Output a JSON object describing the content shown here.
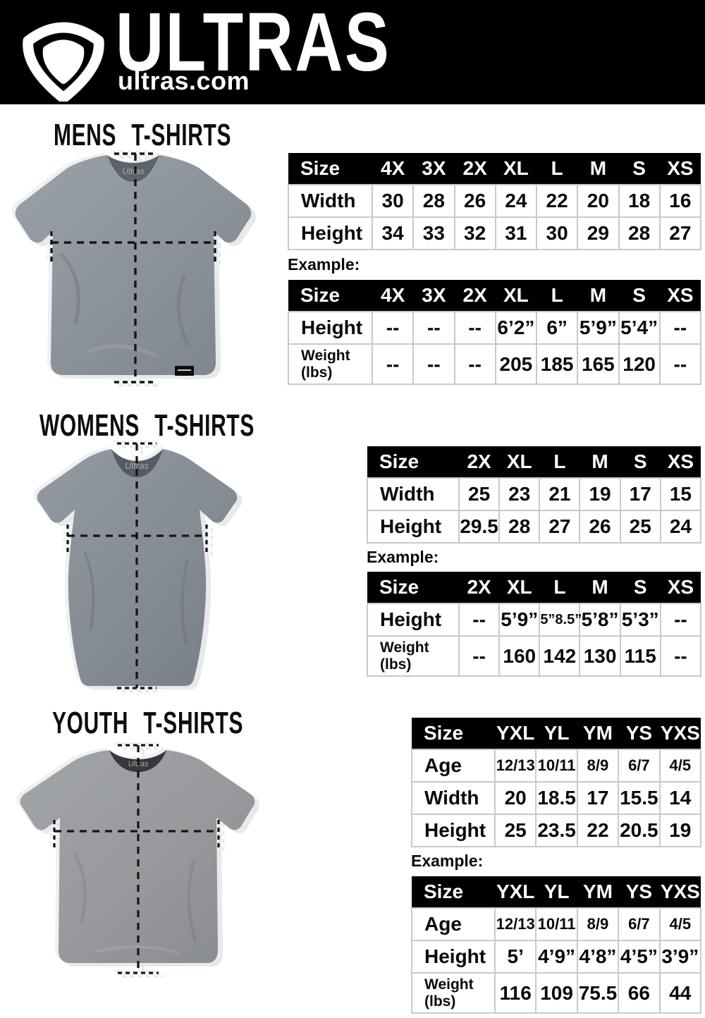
{
  "header": {
    "brand": "ULTRAS",
    "site": "ultras.com",
    "logo_icon": "pentagon-shield-icon"
  },
  "colors": {
    "header_bg": "#000000",
    "table_header_bg": "#000000",
    "table_header_text": "#ffffff",
    "table_border": "#c9c9c9",
    "mens_shirt": "#8d939b",
    "womens_shirt": "#878d95",
    "youth_shirt": "#97999c"
  },
  "sections": [
    {
      "id": "mens",
      "title": "MENS T-SHIRTS",
      "shirt_image": "mens-gray-tshirt-with-measurement-lines",
      "size_table": {
        "header": [
          "Size",
          "4X",
          "3X",
          "2X",
          "XL",
          "L",
          "M",
          "S",
          "XS"
        ],
        "rows": [
          {
            "label_lines": [
              "Width"
            ],
            "values": [
              "30",
              "28",
              "26",
              "24",
              "22",
              "20",
              "18",
              "16"
            ]
          },
          {
            "label_lines": [
              "Height"
            ],
            "values": [
              "34",
              "33",
              "32",
              "31",
              "30",
              "29",
              "28",
              "27"
            ]
          }
        ]
      },
      "example_label": "Example:",
      "example_table": {
        "header": [
          "Size",
          "4X",
          "3X",
          "2X",
          "XL",
          "L",
          "M",
          "S",
          "XS"
        ],
        "rows": [
          {
            "label_lines": [
              "Height"
            ],
            "values": [
              "--",
              "--",
              "--",
              "6’2”",
              "6”",
              "5’9”",
              "5’4”",
              "--"
            ]
          },
          {
            "label_lines": [
              "Weight",
              "(lbs)"
            ],
            "values": [
              "--",
              "--",
              "--",
              "205",
              "185",
              "165",
              "120",
              "--"
            ]
          }
        ]
      }
    },
    {
      "id": "womens",
      "title": "WOMENS T-SHIRTS",
      "shirt_image": "womens-gray-tshirt-with-measurement-lines",
      "size_table": {
        "header": [
          "Size",
          "2X",
          "XL",
          "L",
          "M",
          "S",
          "XS"
        ],
        "rows": [
          {
            "label_lines": [
              "Width"
            ],
            "values": [
              "25",
              "23",
              "21",
              "19",
              "17",
              "15"
            ]
          },
          {
            "label_lines": [
              "Height"
            ],
            "values": [
              "29.5",
              "28",
              "27",
              "26",
              "25",
              "24"
            ]
          }
        ]
      },
      "example_label": "Example:",
      "example_table": {
        "header": [
          "Size",
          "2X",
          "XL",
          "L",
          "M",
          "S",
          "XS"
        ],
        "rows": [
          {
            "label_lines": [
              "Height"
            ],
            "values": [
              "--",
              "5’9”",
              "5”8.5”",
              "5’8”",
              "5’3”",
              "--"
            ]
          },
          {
            "label_lines": [
              "Weight",
              "(lbs)"
            ],
            "values": [
              "--",
              "160",
              "142",
              "130",
              "115",
              "--"
            ]
          }
        ]
      }
    },
    {
      "id": "youth",
      "title": "YOUTH T-SHIRTS",
      "shirt_image": "youth-gray-tshirt-with-measurement-lines",
      "size_table": {
        "header": [
          "Size",
          "YXL",
          "YL",
          "YM",
          "YS",
          "YXS"
        ],
        "rows": [
          {
            "label_lines": [
              "Age"
            ],
            "small": true,
            "values": [
              "12/13",
              "10/11",
              "8/9",
              "6/7",
              "4/5"
            ]
          },
          {
            "label_lines": [
              "Width"
            ],
            "values": [
              "20",
              "18.5",
              "17",
              "15.5",
              "14"
            ]
          },
          {
            "label_lines": [
              "Height"
            ],
            "values": [
              "25",
              "23.5",
              "22",
              "20.5",
              "19"
            ]
          }
        ]
      },
      "example_label": "Example:",
      "example_table": {
        "header": [
          "Size",
          "YXL",
          "YL",
          "YM",
          "YS",
          "YXS"
        ],
        "rows": [
          {
            "label_lines": [
              "Age"
            ],
            "small": true,
            "values": [
              "12/13",
              "10/11",
              "8/9",
              "6/7",
              "4/5"
            ]
          },
          {
            "label_lines": [
              "Height"
            ],
            "values": [
              "5’",
              "4’9”",
              "4’8”",
              "4’5”",
              "3’9”"
            ]
          },
          {
            "label_lines": [
              "Weight",
              "(lbs)"
            ],
            "values": [
              "116",
              "109",
              "75.5",
              "66",
              "44"
            ]
          }
        ]
      }
    }
  ]
}
